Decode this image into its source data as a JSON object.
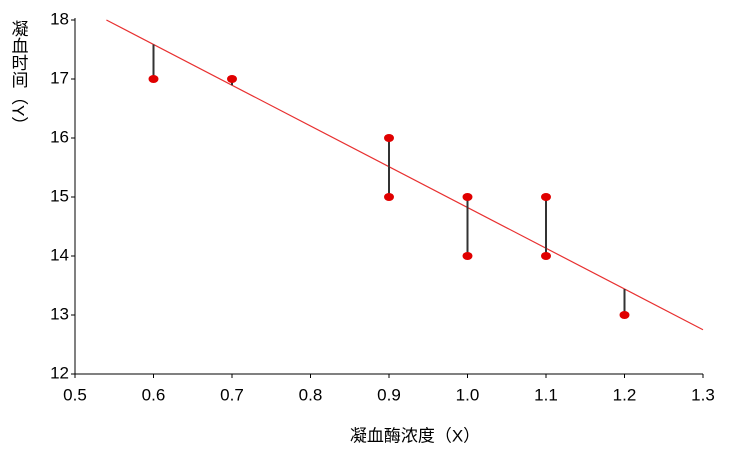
{
  "chart_data": {
    "type": "scatter",
    "x_label": "凝血酶浓度（X）",
    "y_label": "凝血时间（Y）",
    "x": [
      0.6,
      0.7,
      0.9,
      0.9,
      1.0,
      1.0,
      1.1,
      1.1,
      1.2
    ],
    "values": [
      17,
      17,
      16,
      15,
      15,
      14,
      15,
      14,
      13
    ],
    "color": "#e00000",
    "fit_line": {
      "x": [
        0.54,
        1.3
      ],
      "y": [
        18,
        12.75
      ],
      "color": "#e83030"
    },
    "residual_color": "#333333",
    "xlim": [
      0.5,
      1.3
    ],
    "xticks": [
      0.5,
      0.6,
      0.7,
      0.8,
      0.9,
      {
        "value": 1,
        "label": "1.0"
      },
      1.1,
      1.2,
      1.3
    ],
    "ylim": [
      12,
      18
    ],
    "yticks": [
      12,
      13,
      14,
      15,
      16,
      17,
      18
    ]
  }
}
